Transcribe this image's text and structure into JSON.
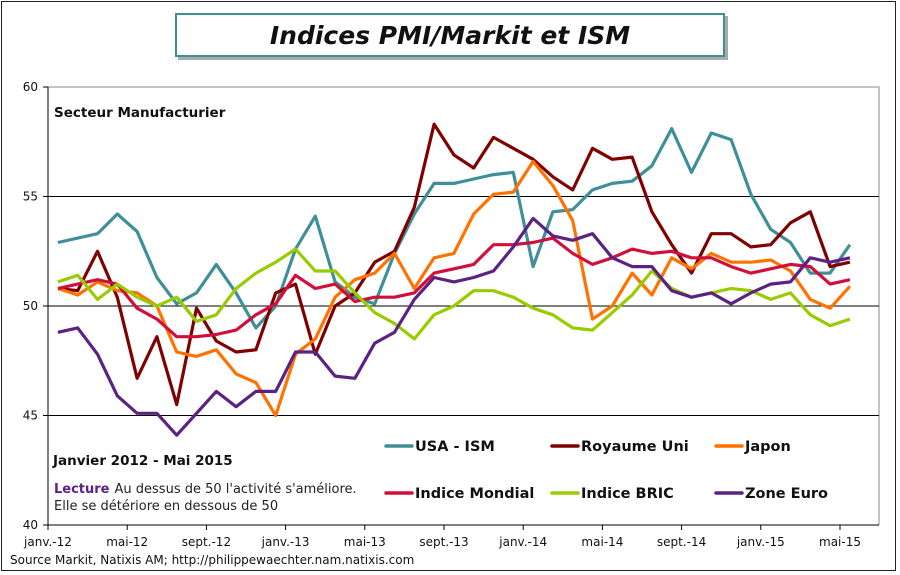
{
  "title": "Indices PMI/Markit et ISM",
  "chart_data": {
    "type": "line",
    "title": "Indices PMI/Markit et ISM",
    "subtitle": "Secteur Manufacturier",
    "period_label": "Janvier 2012 - Mai 2015",
    "note_label": "Lecture",
    "note_line1": "Au dessus de 50 l'activité s'améliore.",
    "note_line2": "Elle se détériore en dessous de 50",
    "source": "Source Markit, Natixis AM; http://philippewaechter.nam.natixis.com",
    "ylim": [
      40,
      60
    ],
    "yticks": [
      40,
      45,
      50,
      55,
      60
    ],
    "grid": "horizontal",
    "legend": "bottom-right",
    "xtick_labels": [
      "janv.-12",
      "mai-12",
      "sept.-12",
      "janv.-13",
      "mai-13",
      "sept.-13",
      "janv.-14",
      "mai-14",
      "sept.-14",
      "janv.-15",
      "mai-15"
    ],
    "x_start": "2012-01",
    "x_end": "2015-05",
    "series": [
      {
        "name": "USA - ISM",
        "color": "#3F8F98",
        "values": [
          52.9,
          53.1,
          53.3,
          54.2,
          53.4,
          51.3,
          50.1,
          50.6,
          51.9,
          50.6,
          49.0,
          50.0,
          52.6,
          54.1,
          51.1,
          50.4,
          50.1,
          52.4,
          54.2,
          55.6,
          55.6,
          55.8,
          56.0,
          56.1,
          51.8,
          54.3,
          54.4,
          55.3,
          55.6,
          55.7,
          56.4,
          58.1,
          56.1,
          57.9,
          57.6,
          55.1,
          53.5,
          52.9,
          51.5,
          51.5,
          52.8
        ]
      },
      {
        "name": "Royaume Uni",
        "color": "#800000",
        "values": [
          50.8,
          50.7,
          52.5,
          50.4,
          46.7,
          48.6,
          45.5,
          49.9,
          48.4,
          47.9,
          48.0,
          50.6,
          51.0,
          47.8,
          50.0,
          50.6,
          52.0,
          52.5,
          54.5,
          58.3,
          56.9,
          56.3,
          57.7,
          57.2,
          56.7,
          55.9,
          55.3,
          57.2,
          56.7,
          56.8,
          54.3,
          52.8,
          51.5,
          53.3,
          53.3,
          52.7,
          52.8,
          53.8,
          54.3,
          51.8,
          52.0
        ]
      },
      {
        "name": "Japon",
        "color": "#FF7200",
        "values": [
          50.8,
          50.5,
          51.1,
          50.7,
          50.6,
          50.0,
          47.9,
          47.7,
          48.0,
          46.9,
          46.5,
          45.0,
          47.8,
          48.5,
          50.4,
          51.2,
          51.5,
          52.4,
          50.8,
          52.2,
          52.4,
          54.2,
          55.1,
          55.2,
          56.6,
          55.5,
          53.9,
          49.4,
          50.0,
          51.5,
          50.5,
          52.2,
          51.7,
          52.4,
          52.0,
          52.0,
          52.1,
          51.6,
          50.3,
          49.9,
          50.9
        ]
      },
      {
        "name": "Indice Mondial",
        "color": "#D0103A",
        "values": [
          50.8,
          51.0,
          51.2,
          51.0,
          49.9,
          49.4,
          48.6,
          48.6,
          48.7,
          48.9,
          49.6,
          50.1,
          51.4,
          50.8,
          51.0,
          50.2,
          50.4,
          50.4,
          50.6,
          51.5,
          51.7,
          51.9,
          52.8,
          52.8,
          52.9,
          53.1,
          52.4,
          51.9,
          52.2,
          52.6,
          52.4,
          52.5,
          52.2,
          52.2,
          51.8,
          51.5,
          51.7,
          51.9,
          51.8,
          51.0,
          51.2
        ]
      },
      {
        "name": "Indice BRIC",
        "color": "#99CC00",
        "values": [
          51.1,
          51.4,
          50.3,
          51.0,
          50.4,
          50.0,
          50.4,
          49.3,
          49.6,
          50.8,
          51.5,
          52.0,
          52.6,
          51.6,
          51.6,
          50.6,
          49.7,
          49.2,
          48.5,
          49.6,
          50.0,
          50.7,
          50.7,
          50.4,
          49.9,
          49.6,
          49.0,
          48.9,
          49.7,
          50.5,
          51.6,
          50.8,
          50.4,
          50.6,
          50.8,
          50.7,
          50.3,
          50.6,
          49.6,
          49.1,
          49.4
        ]
      },
      {
        "name": "Zone Euro",
        "color": "#5B2283",
        "values": [
          48.8,
          49.0,
          47.8,
          45.9,
          45.1,
          45.1,
          44.1,
          45.1,
          46.1,
          45.4,
          46.1,
          46.1,
          47.9,
          47.9,
          46.8,
          46.7,
          48.3,
          48.8,
          50.3,
          51.3,
          51.1,
          51.3,
          51.6,
          52.7,
          54.0,
          53.2,
          53.0,
          53.3,
          52.2,
          51.8,
          51.8,
          50.7,
          50.4,
          50.6,
          50.1,
          50.6,
          51.0,
          51.1,
          52.2,
          52.0,
          52.2
        ]
      }
    ]
  }
}
